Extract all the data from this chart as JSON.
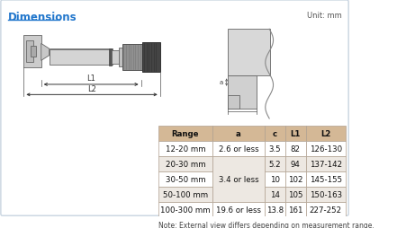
{
  "title": "Dimensions",
  "unit_label": "Unit: mm",
  "bg_color": "#f0f4f8",
  "border_color": "#c8d4e0",
  "title_color": "#2277cc",
  "table_header_bg": "#d4b896",
  "table_row_bg1": "#ffffff",
  "table_row_bg2": "#ede8e2",
  "table_border_color": "#b0a090",
  "table_headers": [
    "Range",
    "a",
    "c",
    "L1",
    "L2"
  ],
  "table_rows": [
    [
      "12-20 mm",
      "2.6 or less",
      "3.5",
      "82",
      "126-130"
    ],
    [
      "20-30 mm",
      "",
      "5.2",
      "94",
      "137-142"
    ],
    [
      "30-50 mm",
      "3.4 or less",
      "10",
      "102",
      "145-155"
    ],
    [
      "50-100 mm",
      "",
      "14",
      "105",
      "150-163"
    ],
    [
      "100-300 mm",
      "19.6 or less",
      "13.8",
      "161",
      "227-252"
    ]
  ],
  "note": "Note: External view differs depending on measurement range.",
  "diagram_color_body": "#d4d4d4",
  "diagram_color_dark": "#888888",
  "diagram_color_black": "#444444",
  "diagram_color_mid": "#b8b8b8"
}
